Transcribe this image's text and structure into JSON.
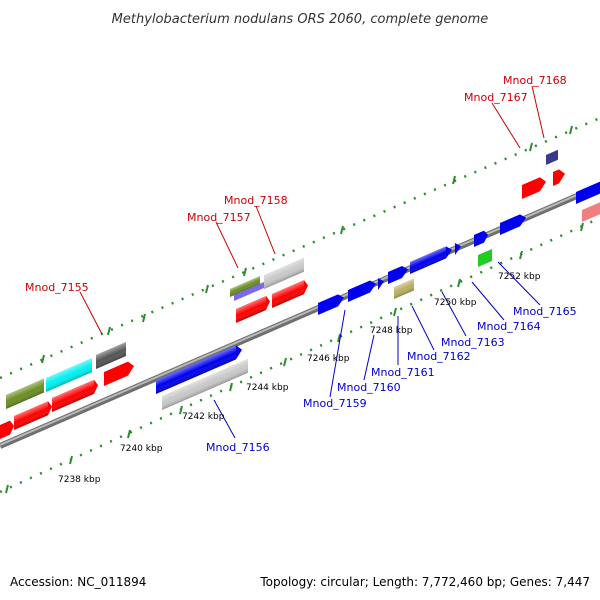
{
  "title": "Methylobacterium nodulans ORS 2060, complete genome",
  "footer": {
    "accession": "Accession: NC_011894",
    "summary": "Topology: circular; Length: 7,772,460 bp; Genes: 7,447"
  },
  "colors": {
    "title": "#333333",
    "backbone": "#8a8a8a",
    "ticks": "#2e8b2e",
    "top_strand_label": "#cc0000",
    "bottom_strand_label": "#0000cc",
    "red": "#ff0000",
    "blue": "#0000ee",
    "grey": "#c8c8c8",
    "dark_grey": "#555555",
    "olive": "#6b8e23",
    "cyan": "#00f0f0",
    "slate": "#7b68ee",
    "navy": "#3a3a8c",
    "pink": "#f08080",
    "khaki": "#b8b060",
    "green": "#22cc22"
  },
  "scale_labels": [
    "7238 kbp",
    "7240 kbp",
    "7242 kbp",
    "7244 kbp",
    "7246 kbp",
    "7248 kbp",
    "7250 kbp",
    "7252 kbp"
  ],
  "top_labels": [
    "Mnod_7155",
    "Mnod_7157",
    "Mnod_7158",
    "Mnod_7167",
    "Mnod_7168"
  ],
  "bottom_labels": [
    "Mnod_7156",
    "Mnod_7159",
    "Mnod_7160",
    "Mnod_7161",
    "Mnod_7162",
    "Mnod_7163",
    "Mnod_7164",
    "Mnod_7165"
  ]
}
